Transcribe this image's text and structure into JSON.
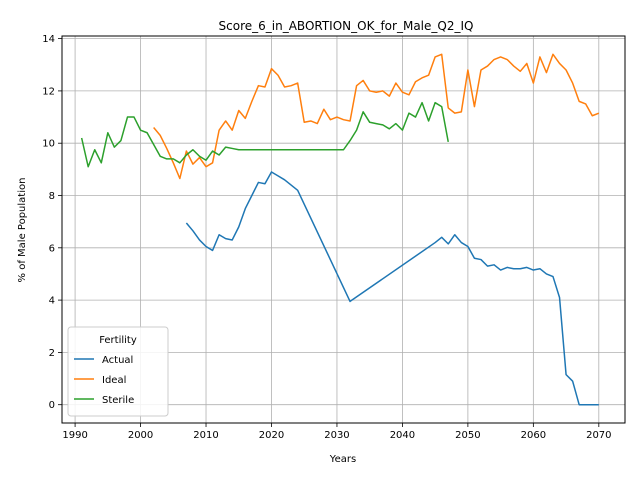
{
  "chart_data": {
    "type": "line",
    "title": "Score_6_in_ABORTION_OK_for_Male_Q2_IQ",
    "xlabel": "Years",
    "ylabel": "% of Male Population",
    "xlim": [
      1988,
      2074
    ],
    "ylim": [
      -0.7,
      14.1
    ],
    "xticks": [
      1990,
      2000,
      2010,
      2020,
      2030,
      2040,
      2050,
      2060,
      2070
    ],
    "yticks": [
      0,
      2,
      4,
      6,
      8,
      10,
      12,
      14
    ],
    "grid": true,
    "legend": {
      "title": "Fertility",
      "placement": "lower-left"
    },
    "series": [
      {
        "name": "Actual",
        "color": "#1f77b4",
        "x": [
          2007,
          2008,
          2009,
          2010,
          2011,
          2012,
          2013,
          2014,
          2015,
          2016,
          2017,
          2018,
          2019,
          2020,
          2021,
          2022,
          2023,
          2024,
          2032,
          2045,
          2046,
          2047,
          2048,
          2049,
          2050,
          2051,
          2052,
          2053,
          2054,
          2055,
          2056,
          2057,
          2058,
          2059,
          2060,
          2061,
          2062,
          2063,
          2064,
          2065,
          2066,
          2067,
          2068,
          2069,
          2070
        ],
        "y": [
          6.95,
          6.65,
          6.3,
          6.05,
          5.9,
          6.5,
          6.35,
          6.3,
          6.8,
          7.5,
          8.0,
          8.5,
          8.45,
          8.9,
          8.75,
          8.6,
          8.4,
          8.2,
          3.95,
          6.2,
          6.4,
          6.15,
          6.5,
          6.2,
          6.05,
          5.6,
          5.55,
          5.3,
          5.35,
          5.15,
          5.25,
          5.2,
          5.2,
          5.25,
          5.15,
          5.2,
          5.0,
          4.9,
          4.1,
          1.15,
          0.9,
          0.0,
          0.0,
          0.0,
          0.0
        ]
      },
      {
        "name": "Ideal",
        "color": "#ff7f0e",
        "x": [
          2002,
          2003,
          2004,
          2005,
          2006,
          2007,
          2008,
          2009,
          2010,
          2011,
          2012,
          2013,
          2014,
          2015,
          2016,
          2017,
          2018,
          2019,
          2020,
          2021,
          2022,
          2023,
          2024,
          2025,
          2026,
          2027,
          2028,
          2029,
          2030,
          2031,
          2032,
          2033,
          2034,
          2035,
          2036,
          2037,
          2038,
          2039,
          2040,
          2041,
          2042,
          2043,
          2044,
          2045,
          2046,
          2047,
          2048,
          2049,
          2050,
          2051,
          2052,
          2053,
          2054,
          2055,
          2056,
          2057,
          2058,
          2059,
          2060,
          2061,
          2062,
          2063,
          2064,
          2065,
          2066,
          2067,
          2068,
          2069,
          2070
        ],
        "y": [
          10.6,
          10.3,
          9.8,
          9.25,
          8.65,
          9.7,
          9.2,
          9.45,
          9.1,
          9.25,
          10.5,
          10.85,
          10.5,
          11.25,
          10.95,
          11.6,
          12.2,
          12.15,
          12.85,
          12.6,
          12.15,
          12.2,
          12.3,
          10.8,
          10.85,
          10.75,
          11.3,
          10.9,
          11.0,
          10.9,
          10.85,
          12.2,
          12.4,
          12.0,
          11.95,
          12.0,
          11.8,
          12.3,
          11.95,
          11.85,
          12.35,
          12.5,
          12.6,
          13.3,
          13.4,
          11.35,
          11.15,
          11.2,
          12.8,
          11.4,
          12.8,
          12.95,
          13.2,
          13.3,
          13.2,
          12.95,
          12.75,
          13.05,
          12.3,
          13.3,
          12.7,
          13.4,
          13.05,
          12.8,
          12.3,
          11.6,
          11.5,
          11.05,
          11.15
        ]
      },
      {
        "name": "Sterile",
        "color": "#2ca02c",
        "x": [
          1991,
          1992,
          1993,
          1994,
          1995,
          1996,
          1997,
          1998,
          1999,
          2000,
          2001,
          2002,
          2003,
          2004,
          2005,
          2006,
          2007,
          2008,
          2009,
          2010,
          2011,
          2012,
          2013,
          2014,
          2015,
          2031,
          2032,
          2033,
          2034,
          2035,
          2036,
          2037,
          2038,
          2039,
          2040,
          2041,
          2042,
          2043,
          2044,
          2045,
          2046,
          2047
        ],
        "y": [
          10.2,
          9.1,
          9.75,
          9.25,
          10.4,
          9.85,
          10.1,
          11.0,
          11.0,
          10.5,
          10.4,
          9.95,
          9.5,
          9.4,
          9.4,
          9.25,
          9.55,
          9.75,
          9.5,
          9.35,
          9.7,
          9.55,
          9.85,
          9.8,
          9.75,
          9.75,
          10.1,
          10.5,
          11.2,
          10.8,
          10.75,
          10.7,
          10.55,
          10.75,
          10.5,
          11.15,
          11.0,
          11.55,
          10.85,
          11.55,
          11.4,
          10.05
        ]
      }
    ]
  }
}
